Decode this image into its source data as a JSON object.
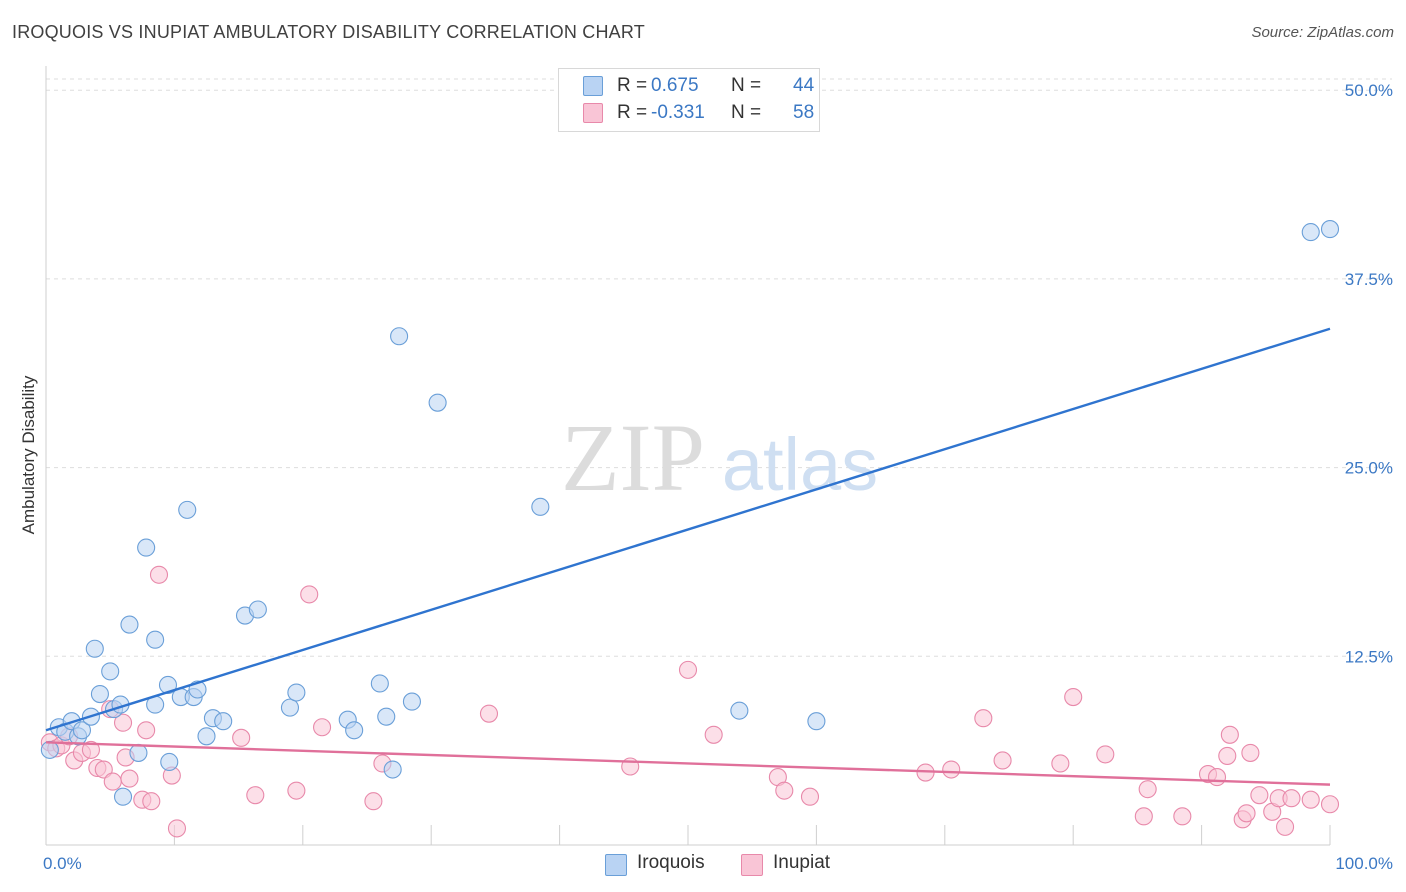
{
  "title": "IROQUOIS VS INUPIAT AMBULATORY DISABILITY CORRELATION CHART",
  "source": "Source: ZipAtlas.com",
  "watermark": {
    "zip": "ZIP",
    "atlas": "atlas"
  },
  "legend": {
    "rows": [
      {
        "r_label": "R =",
        "r_value": "0.675",
        "n_label": "N =",
        "n_value": "44"
      },
      {
        "r_label": "R =",
        "r_value": "-0.331",
        "n_label": "N =",
        "n_value": "58"
      }
    ]
  },
  "bottom_legend": {
    "series1": "Iroquois",
    "series2": "Inupiat"
  },
  "colors": {
    "iroquois_fill": "#b9d3f3",
    "iroquois_stroke": "#6a9fd8",
    "iroquois_line": "#2f74cf",
    "inupiat_fill": "#f9c5d6",
    "inupiat_stroke": "#e889aa",
    "inupiat_line": "#e0709a",
    "tick_text": "#3b78c4",
    "grid": "#dddddd"
  },
  "chart_data": {
    "type": "scatter",
    "title": "IROQUOIS VS INUPIAT AMBULATORY DISABILITY CORRELATION CHART",
    "xlabel": "",
    "ylabel": "Ambulatory Disability",
    "xlim": [
      0,
      100
    ],
    "ylim": [
      0,
      52
    ],
    "x_tick_labels": [
      "0.0%",
      "100.0%"
    ],
    "y_ticks": [
      12.5,
      25.0,
      37.5,
      50.0
    ],
    "y_tick_labels": [
      "12.5%",
      "25.0%",
      "37.5%",
      "50.0%"
    ],
    "grid": true,
    "series": [
      {
        "name": "Iroquois",
        "points": [
          [
            0.3,
            6.3
          ],
          [
            1.0,
            7.8
          ],
          [
            1.5,
            7.5
          ],
          [
            2.0,
            8.2
          ],
          [
            2.5,
            7.2
          ],
          [
            2.8,
            7.6
          ],
          [
            3.5,
            8.5
          ],
          [
            3.8,
            13.0
          ],
          [
            4.2,
            10.0
          ],
          [
            5.0,
            11.5
          ],
          [
            5.3,
            9.0
          ],
          [
            5.8,
            9.3
          ],
          [
            6.0,
            3.2
          ],
          [
            6.5,
            14.6
          ],
          [
            7.2,
            6.1
          ],
          [
            7.8,
            19.7
          ],
          [
            8.5,
            9.3
          ],
          [
            8.5,
            13.6
          ],
          [
            9.5,
            10.6
          ],
          [
            9.6,
            5.5
          ],
          [
            10.5,
            9.8
          ],
          [
            11.0,
            22.2
          ],
          [
            11.5,
            9.8
          ],
          [
            11.8,
            10.3
          ],
          [
            12.5,
            7.2
          ],
          [
            13.0,
            8.4
          ],
          [
            13.8,
            8.2
          ],
          [
            15.5,
            15.2
          ],
          [
            16.5,
            15.6
          ],
          [
            19.0,
            9.1
          ],
          [
            19.5,
            10.1
          ],
          [
            23.5,
            8.3
          ],
          [
            24.0,
            7.6
          ],
          [
            26.0,
            10.7
          ],
          [
            26.5,
            8.5
          ],
          [
            27.0,
            5.0
          ],
          [
            27.5,
            33.7
          ],
          [
            28.5,
            9.5
          ],
          [
            30.5,
            29.3
          ],
          [
            38.5,
            22.4
          ],
          [
            54.0,
            8.9
          ],
          [
            60.0,
            8.2
          ],
          [
            98.5,
            40.6
          ],
          [
            100.0,
            40.8
          ]
        ]
      },
      {
        "name": "Inupiat",
        "points": [
          [
            0.3,
            6.8
          ],
          [
            0.8,
            6.4
          ],
          [
            1.2,
            6.6
          ],
          [
            1.8,
            7.2
          ],
          [
            2.2,
            5.6
          ],
          [
            2.8,
            6.1
          ],
          [
            3.5,
            6.3
          ],
          [
            4.0,
            5.1
          ],
          [
            4.5,
            5.0
          ],
          [
            5.0,
            9.0
          ],
          [
            5.2,
            4.2
          ],
          [
            6.0,
            8.1
          ],
          [
            6.2,
            5.8
          ],
          [
            6.5,
            4.4
          ],
          [
            7.5,
            3.0
          ],
          [
            7.8,
            7.6
          ],
          [
            8.2,
            2.9
          ],
          [
            8.8,
            17.9
          ],
          [
            9.8,
            4.6
          ],
          [
            10.2,
            1.1
          ],
          [
            15.2,
            7.1
          ],
          [
            16.3,
            3.3
          ],
          [
            19.5,
            3.6
          ],
          [
            20.5,
            16.6
          ],
          [
            21.5,
            7.8
          ],
          [
            25.5,
            2.9
          ],
          [
            26.2,
            5.4
          ],
          [
            34.5,
            8.7
          ],
          [
            45.5,
            5.2
          ],
          [
            50.0,
            11.6
          ],
          [
            52.0,
            7.3
          ],
          [
            57.0,
            4.5
          ],
          [
            57.5,
            3.6
          ],
          [
            59.5,
            3.2
          ],
          [
            68.5,
            4.8
          ],
          [
            70.5,
            5.0
          ],
          [
            73.0,
            8.4
          ],
          [
            74.5,
            5.6
          ],
          [
            79.0,
            5.4
          ],
          [
            80.0,
            9.8
          ],
          [
            82.5,
            6.0
          ],
          [
            85.5,
            1.9
          ],
          [
            85.8,
            3.7
          ],
          [
            88.5,
            1.9
          ],
          [
            90.5,
            4.7
          ],
          [
            91.2,
            4.5
          ],
          [
            92.0,
            5.9
          ],
          [
            92.2,
            7.3
          ],
          [
            93.2,
            1.7
          ],
          [
            93.5,
            2.1
          ],
          [
            93.8,
            6.1
          ],
          [
            94.5,
            3.3
          ],
          [
            95.5,
            2.2
          ],
          [
            96.0,
            3.1
          ],
          [
            96.5,
            1.2
          ],
          [
            97.0,
            3.1
          ],
          [
            98.5,
            3.0
          ],
          [
            100.0,
            2.7
          ]
        ]
      }
    ],
    "trend_lines": [
      {
        "series": "Iroquois",
        "from": [
          0,
          7.6
        ],
        "to": [
          100,
          34.2
        ]
      },
      {
        "series": "Inupiat",
        "from": [
          0,
          6.8
        ],
        "to": [
          100,
          4.0
        ]
      }
    ]
  }
}
